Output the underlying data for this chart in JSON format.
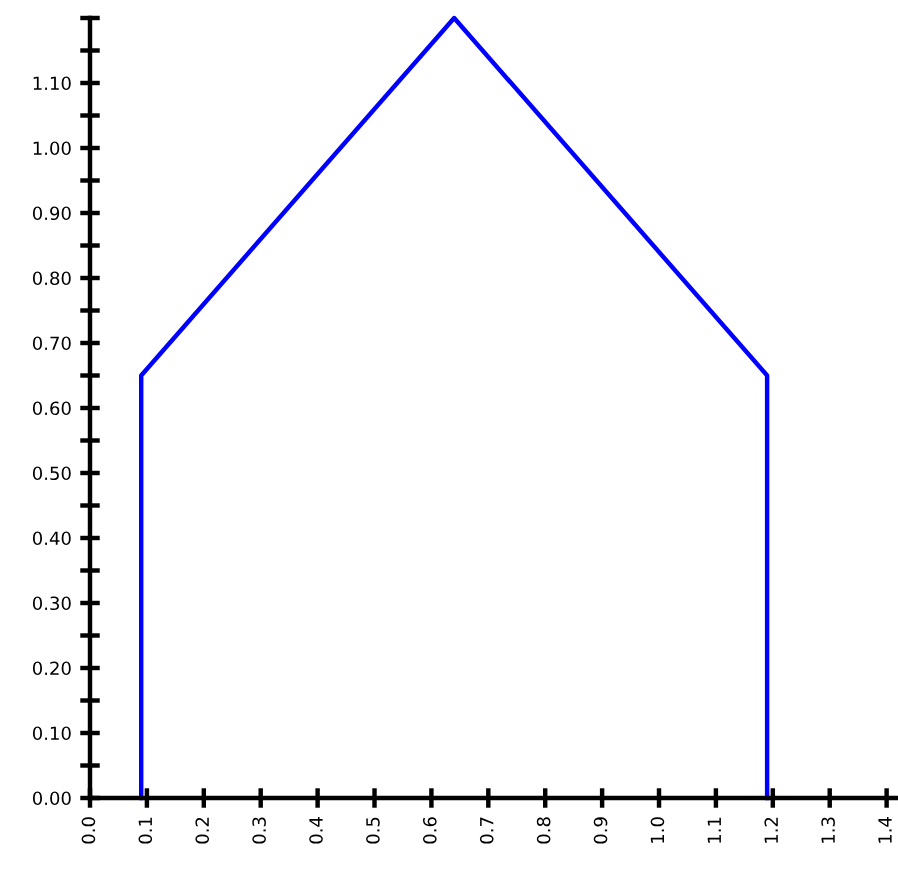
{
  "chart_data": {
    "type": "line",
    "x": [
      0.09,
      0.09,
      0.64,
      1.19,
      1.19
    ],
    "series": [
      {
        "color": "#0000ff",
        "values": [
          0,
          0.65,
          1.2,
          0.65,
          0
        ]
      }
    ],
    "line_style": "solid",
    "xlim": [
      0,
      1.42
    ],
    "ylim": [
      0,
      1.2
    ],
    "xticks": [
      {
        "value": 0,
        "label": "0.0"
      },
      0.1,
      0.2,
      0.3,
      0.4,
      0.5,
      0.6,
      0.7,
      0.8,
      0.9,
      {
        "value": 1,
        "label": "1.0"
      },
      1.1,
      1.2,
      1.3,
      1.4
    ],
    "yticks": [
      {
        "value": 0,
        "label": "0.00"
      },
      {
        "value": 0.05,
        "label": null
      },
      {
        "value": 0.1,
        "label": "0.10"
      },
      {
        "value": 0.15,
        "label": null
      },
      {
        "value": 0.2,
        "label": "0.20"
      },
      {
        "value": 0.25,
        "label": null
      },
      {
        "value": 0.3,
        "label": "0.30"
      },
      {
        "value": 0.35,
        "label": null
      },
      {
        "value": 0.4,
        "label": "0.40"
      },
      {
        "value": 0.45,
        "label": null
      },
      {
        "value": 0.5,
        "label": "0.50"
      },
      {
        "value": 0.55,
        "label": null
      },
      {
        "value": 0.6,
        "label": "0.60"
      },
      {
        "value": 0.65,
        "label": null
      },
      {
        "value": 0.7,
        "label": "0.70"
      },
      {
        "value": 0.75,
        "label": null
      },
      {
        "value": 0.8,
        "label": "0.80"
      },
      {
        "value": 0.85,
        "label": null
      },
      {
        "value": 0.9,
        "label": "0.90"
      },
      {
        "value": 0.95,
        "label": null
      },
      {
        "value": 1.0,
        "label": "1.00"
      },
      {
        "value": 1.05,
        "label": null
      },
      {
        "value": 1.1,
        "label": "1.10"
      },
      {
        "value": 1.15,
        "label": null
      },
      {
        "value": 1.2,
        "label": null
      }
    ]
  }
}
